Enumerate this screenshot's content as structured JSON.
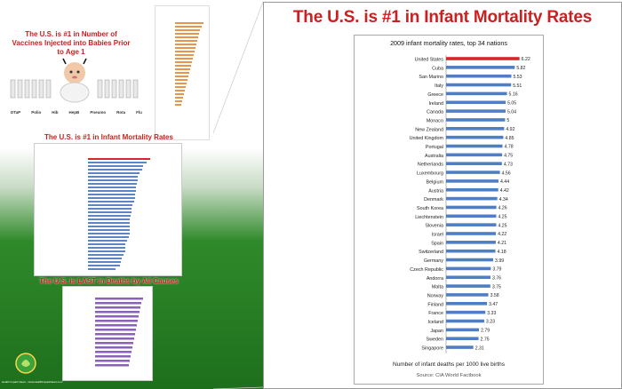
{
  "main": {
    "title": "The U.S. is #1 in Infant Mortality Rates"
  },
  "left_panel": {
    "vaccine_title": "The U.S. is #1 in Number of Vaccines Injected into Babies Prior to Age 1",
    "vaccine_labels": [
      "DTaP",
      "Polio",
      "Hib",
      "HepB",
      "Pneumo",
      "Rota",
      "Flu"
    ],
    "mini_title_2": "The U.S. is #1 in Infant Mortality Rates",
    "mini_title_3": "The U.S. is LAST in Deaths by All Causes",
    "credit": "Health Impact News - www.HealthImpactNews.com"
  },
  "colors": {
    "accent_red": "#cc1f1f",
    "us_bar": "#d9262c",
    "bar": "#4f7ec4",
    "green": "#1e6f1c"
  },
  "chart_data": {
    "type": "bar",
    "orientation": "horizontal",
    "title": "2009 infant mortality rates, top 34 nations",
    "xlabel": "Number of infant deaths per 1000 live births",
    "source": "Source: CIA World Factbook",
    "categories": [
      "United States",
      "Cuba",
      "San Marino",
      "Italy",
      "Greece",
      "Ireland",
      "Canada",
      "Monaco",
      "New Zealand",
      "United Kingdom",
      "Portugal",
      "Australia",
      "Netherlands",
      "Luxembourg",
      "Belgium",
      "Austria",
      "Denmark",
      "South Korea",
      "Liechtenstein",
      "Slovenia",
      "Israel",
      "Spain",
      "Switzerland",
      "Germany",
      "Czech Republic",
      "Andorra",
      "Malta",
      "Norway",
      "Finland",
      "France",
      "Iceland",
      "Japan",
      "Sweden",
      "Singapore"
    ],
    "values": [
      6.22,
      5.82,
      5.53,
      5.51,
      5.16,
      5.05,
      5.04,
      5,
      4.92,
      4.85,
      4.78,
      4.75,
      4.73,
      4.56,
      4.44,
      4.42,
      4.34,
      4.26,
      4.25,
      4.25,
      4.22,
      4.21,
      4.18,
      3.99,
      3.79,
      3.76,
      3.75,
      3.58,
      3.47,
      3.33,
      3.23,
      2.79,
      2.75,
      2.31
    ],
    "value_labels": [
      "6.22",
      "5.82",
      "5.53",
      "5.51",
      "5.16",
      "5.05",
      "5.04",
      "5",
      "4.92",
      "4.85",
      "4.78",
      "4.75",
      "4.73",
      "4.56",
      "4.44",
      "4.42",
      "4.34",
      "4.26",
      "4.25",
      "4.25",
      "4.22",
      "4.21",
      "4.18",
      "3.99",
      "3.79",
      "3.76",
      "3.75",
      "3.58",
      "3.47",
      "3.33",
      "3.23",
      "2.79",
      "2.75",
      "2.31"
    ],
    "xlim": [
      0,
      7
    ]
  }
}
